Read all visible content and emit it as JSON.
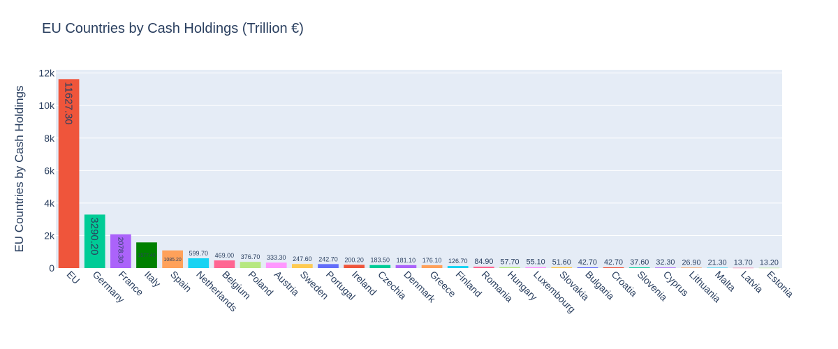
{
  "chart_data": {
    "type": "bar",
    "title": "EU Countries by Cash Holdings (Trillion €)",
    "xlabel": "",
    "ylabel": "EU Countries by Cash Holdings",
    "ylim": [
      0,
      12200
    ],
    "yticks": [
      0,
      2000,
      4000,
      6000,
      8000,
      10000,
      12000
    ],
    "ytick_labels": [
      "0",
      "2k",
      "4k",
      "6k",
      "8k",
      "10k",
      "12k"
    ],
    "grid": true,
    "legend": "none",
    "categories": [
      "EU",
      "Germany",
      "France",
      "Italy",
      "Spain",
      "Netherlands",
      "Belgium",
      "Poland",
      "Austria",
      "Sweden",
      "Portugal",
      "Ireland",
      "Czechia",
      "Denmark",
      "Greece",
      "Finland",
      "Romania",
      "Hungary",
      "Luxembourg",
      "Slovakia",
      "Bulgaria",
      "Croatia",
      "Slovenia",
      "Cyprus",
      "Lithuania",
      "Malta",
      "Latvia",
      "Estonia"
    ],
    "values": [
      11627.3,
      3290.2,
      2078.3,
      1577.4,
      1085.2,
      599.7,
      469.0,
      376.7,
      333.3,
      247.6,
      242.7,
      200.2,
      183.5,
      181.1,
      176.1,
      126.7,
      84.9,
      57.7,
      55.1,
      51.6,
      42.7,
      42.7,
      37.6,
      32.3,
      26.9,
      21.3,
      13.7,
      13.2
    ],
    "value_labels": [
      "11627.30",
      "3290.20",
      "2078.30",
      "1577.40",
      "1085.20",
      "599.70",
      "469.00",
      "376.70",
      "333.30",
      "247.60",
      "242.70",
      "200.20",
      "183.50",
      "181.10",
      "176.10",
      "126.70",
      "84.90",
      "57.70",
      "55.10",
      "51.60",
      "42.70",
      "42.70",
      "37.60",
      "32.30",
      "26.90",
      "21.30",
      "13.70",
      "13.20"
    ],
    "colors": [
      "#EF553B",
      "#00CC96",
      "#AB63FA",
      "#008000",
      "#FFA15A",
      "#19D3F3",
      "#FF6692",
      "#B6E880",
      "#FF97FF",
      "#FECB52",
      "#636EFA",
      "#EF553B",
      "#00CC96",
      "#AB63FA",
      "#FFA15A",
      "#19D3F3",
      "#FF6692",
      "#B6E880",
      "#FF97FF",
      "#FECB52",
      "#636EFA",
      "#EF553B",
      "#00CC96",
      "#AB63FA",
      "#FFA15A",
      "#19D3F3",
      "#FF6692",
      "#B6E880"
    ],
    "plot_bgcolor": "#E5ECF6",
    "text_color": "#2a3f5f"
  }
}
